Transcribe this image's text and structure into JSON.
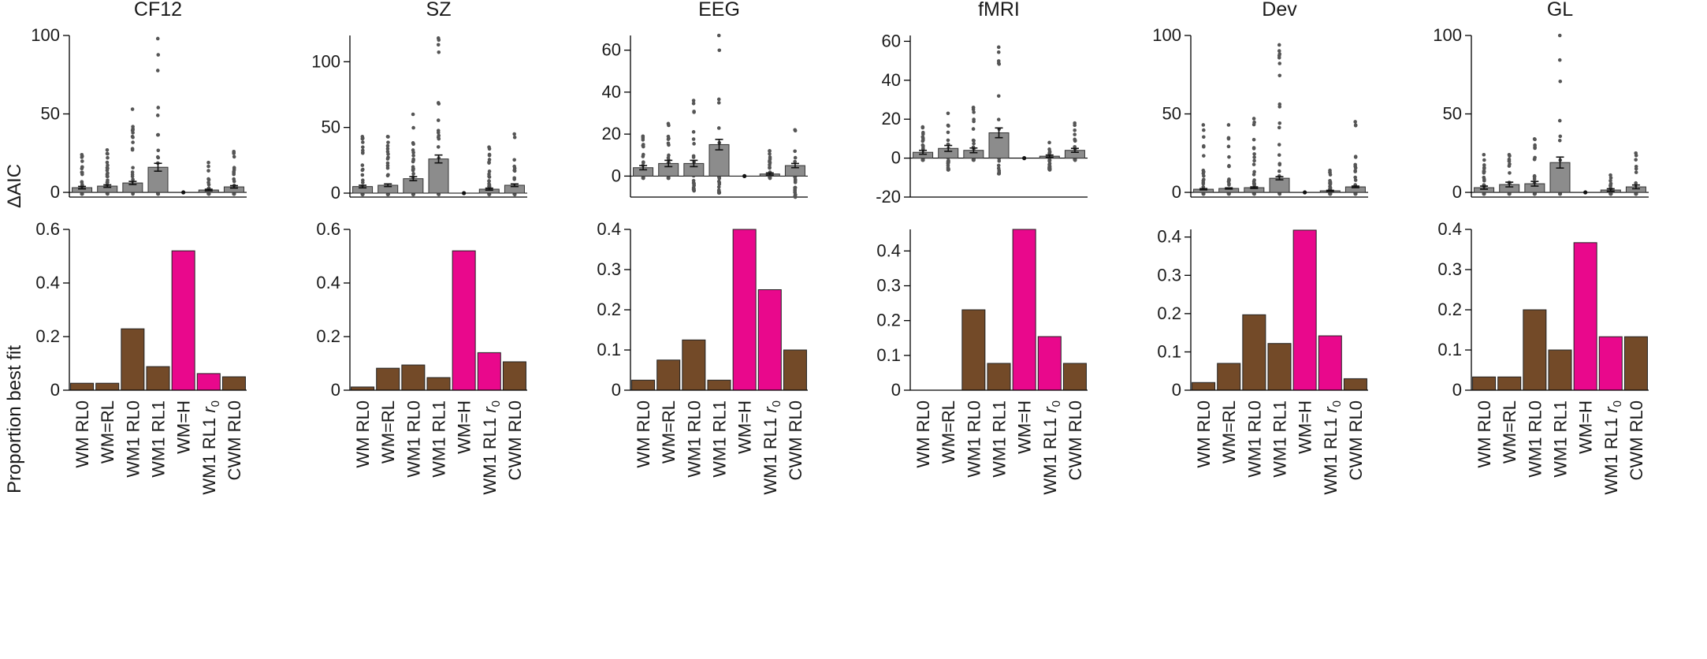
{
  "figure": {
    "ylabel_top": "ΔAIC",
    "ylabel_bottom": "Proportion best fit",
    "categories": [
      "WM RL0",
      "WM=RL",
      "WM1 RL0",
      "WM1 RL1",
      "WM=H",
      "WM1 RL1 r0",
      "CWM RL0"
    ],
    "category_labels": [
      {
        "text": "WM RL0"
      },
      {
        "text": "WM=RL"
      },
      {
        "text": "WM1 RL0"
      },
      {
        "text": "WM1 RL1"
      },
      {
        "text": "WM=H"
      },
      {
        "text": "WM1 RL1 ",
        "italic": "r",
        "sub": "0"
      },
      {
        "text": "CWM RL0"
      }
    ],
    "colors": {
      "aic_bar": "#8c8c8c",
      "brown": "#734a28",
      "magenta": "#e9088c",
      "point": "#555555"
    }
  },
  "chart_data": [
    {
      "panel": "CF12",
      "type": "bar",
      "title": "CF12",
      "aic": {
        "ylim": [
          -3,
          100
        ],
        "yticks": [
          0,
          50,
          100
        ],
        "means": [
          3,
          4,
          6,
          16,
          0,
          1.5,
          3.5
        ],
        "errors": [
          0.8,
          0.8,
          1.0,
          2.5,
          0,
          0.5,
          0.8
        ],
        "spread": [
          [
            -1,
            24
          ],
          [
            -1,
            27
          ],
          [
            -1,
            53
          ],
          [
            -1,
            98
          ],
          [
            0,
            0
          ],
          [
            -1,
            19
          ],
          [
            -1,
            26
          ]
        ]
      },
      "best": {
        "ylim": [
          0,
          0.6
        ],
        "yticks": [
          0,
          0.2,
          0.4,
          0.6
        ],
        "values": [
          0.026,
          0.026,
          0.229,
          0.088,
          0.52,
          0.062,
          0.05
        ],
        "colors": [
          "brown",
          "brown",
          "brown",
          "brown",
          "magenta",
          "magenta",
          "brown"
        ]
      }
    },
    {
      "panel": "SZ",
      "type": "bar",
      "title": "SZ",
      "aic": {
        "ylim": [
          -3,
          120
        ],
        "yticks": [
          0,
          50,
          100
        ],
        "means": [
          5,
          6,
          11,
          26,
          0,
          3,
          6
        ],
        "errors": [
          1,
          1,
          1.5,
          3,
          0,
          0.8,
          1
        ],
        "spread": [
          [
            -1,
            43
          ],
          [
            -1,
            43
          ],
          [
            -1,
            60
          ],
          [
            -1,
            118
          ],
          [
            0,
            0
          ],
          [
            -1,
            35
          ],
          [
            -1,
            45
          ]
        ]
      },
      "best": {
        "ylim": [
          0,
          0.6
        ],
        "yticks": [
          0,
          0.2,
          0.4,
          0.6
        ],
        "values": [
          0.012,
          0.082,
          0.094,
          0.047,
          0.52,
          0.14,
          0.106
        ],
        "colors": [
          "brown",
          "brown",
          "brown",
          "brown",
          "magenta",
          "magenta",
          "brown"
        ]
      }
    },
    {
      "panel": "EEG",
      "type": "bar",
      "title": "EEG",
      "aic": {
        "ylim": [
          -10,
          67
        ],
        "yticks": [
          0,
          20,
          40,
          60
        ],
        "means": [
          4,
          6,
          6,
          15,
          0,
          1,
          5
        ],
        "errors": [
          1,
          1.5,
          1.5,
          2.5,
          0,
          0.5,
          1
        ],
        "spread": [
          [
            -1,
            19
          ],
          [
            -1,
            25
          ],
          [
            -7,
            36
          ],
          [
            -8,
            67
          ],
          [
            0,
            0
          ],
          [
            -1,
            12
          ],
          [
            -10,
            22
          ]
        ]
      },
      "best": {
        "ylim": [
          0,
          0.4
        ],
        "yticks": [
          0,
          0.1,
          0.2,
          0.3,
          0.4
        ],
        "values": [
          0.025,
          0.075,
          0.125,
          0.025,
          0.4,
          0.25,
          0.1
        ],
        "colors": [
          "brown",
          "brown",
          "brown",
          "brown",
          "magenta",
          "magenta",
          "brown"
        ]
      }
    },
    {
      "panel": "fMRI",
      "type": "bar",
      "title": "fMRI",
      "aic": {
        "ylim": [
          -20,
          63
        ],
        "yticks": [
          -20,
          0,
          20,
          40,
          60
        ],
        "means": [
          3,
          5,
          4,
          13,
          0,
          1,
          4
        ],
        "errors": [
          1,
          1.5,
          1.2,
          2.5,
          0,
          0.6,
          1
        ],
        "spread": [
          [
            -1,
            16
          ],
          [
            -6,
            23
          ],
          [
            -1,
            26
          ],
          [
            -8,
            57
          ],
          [
            0,
            0
          ],
          [
            -6,
            8
          ],
          [
            -1,
            18
          ]
        ]
      },
      "best": {
        "ylim": [
          0,
          0.462
        ],
        "yticks": [
          0,
          0.1,
          0.2,
          0.3,
          0.4
        ],
        "values": [
          0,
          0,
          0.231,
          0.077,
          0.462,
          0.154,
          0.077
        ],
        "colors": [
          "brown",
          "brown",
          "brown",
          "brown",
          "magenta",
          "magenta",
          "brown"
        ]
      }
    },
    {
      "panel": "Dev",
      "type": "bar",
      "title": "Dev",
      "aic": {
        "ylim": [
          -3,
          100
        ],
        "yticks": [
          0,
          50,
          100
        ],
        "means": [
          2,
          2.5,
          3,
          9,
          0,
          1,
          3.5
        ],
        "errors": [
          0.4,
          0.4,
          0.5,
          1,
          0,
          0.3,
          0.5
        ],
        "spread": [
          [
            -1,
            43
          ],
          [
            -1,
            43
          ],
          [
            -1,
            47
          ],
          [
            -1,
            94
          ],
          [
            0,
            0
          ],
          [
            -1,
            14
          ],
          [
            -1,
            45
          ]
        ]
      },
      "best": {
        "ylim": [
          0,
          0.42
        ],
        "yticks": [
          0,
          0.1,
          0.2,
          0.3,
          0.4
        ],
        "values": [
          0.02,
          0.07,
          0.197,
          0.122,
          0.418,
          0.142,
          0.03
        ],
        "colors": [
          "brown",
          "brown",
          "brown",
          "brown",
          "magenta",
          "magenta",
          "brown"
        ]
      }
    },
    {
      "panel": "GL",
      "type": "bar",
      "title": "GL",
      "aic": {
        "ylim": [
          -3,
          100
        ],
        "yticks": [
          0,
          50,
          100
        ],
        "means": [
          3,
          5,
          5.5,
          19,
          0,
          1.5,
          3.5
        ],
        "errors": [
          1,
          1.5,
          1.5,
          3.5,
          0,
          0.8,
          1.2
        ],
        "spread": [
          [
            -1,
            24
          ],
          [
            -1,
            24
          ],
          [
            -1,
            34
          ],
          [
            -1,
            100
          ],
          [
            0,
            0
          ],
          [
            -1,
            11
          ],
          [
            -1,
            25
          ]
        ]
      },
      "best": {
        "ylim": [
          0,
          0.4
        ],
        "yticks": [
          0,
          0.1,
          0.2,
          0.3,
          0.4
        ],
        "values": [
          0.033,
          0.033,
          0.2,
          0.1,
          0.367,
          0.133,
          0.133
        ],
        "colors": [
          "brown",
          "brown",
          "brown",
          "brown",
          "magenta",
          "magenta",
          "brown"
        ]
      }
    }
  ]
}
